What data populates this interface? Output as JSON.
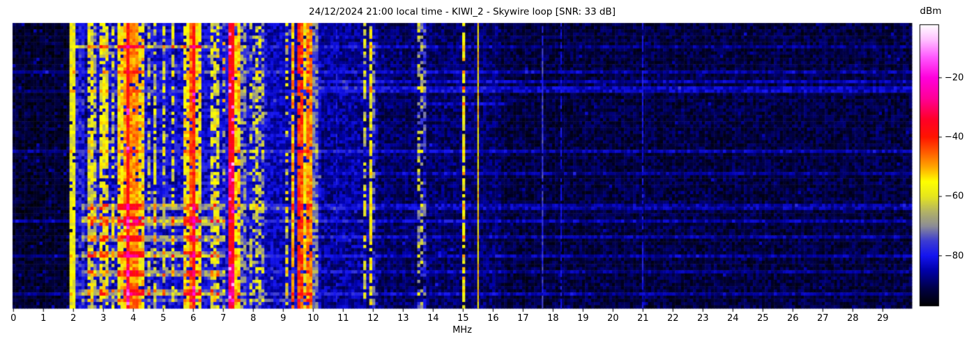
{
  "title": "24/12/2024 21:00 local time - KIWI_2 - Skywire loop [SNR: 33 dB]",
  "x_axis": {
    "label": "MHz",
    "ticks": [
      "0",
      "1",
      "2",
      "3",
      "4",
      "5",
      "6",
      "7",
      "8",
      "9",
      "10",
      "11",
      "12",
      "13",
      "14",
      "15",
      "16",
      "17",
      "18",
      "19",
      "20",
      "21",
      "22",
      "23",
      "24",
      "25",
      "26",
      "27",
      "28",
      "29"
    ]
  },
  "colorbar": {
    "label": "dBm",
    "ticks": [
      {
        "value": -20,
        "label": "−20"
      },
      {
        "value": -40,
        "label": "−40"
      },
      {
        "value": -60,
        "label": "−60"
      },
      {
        "value": -80,
        "label": "−80"
      }
    ]
  },
  "chart_data": {
    "type": "heatmap",
    "title": "24/12/2024 21:00 local time - KIWI_2 - Skywire loop [SNR: 33 dB]",
    "timestamp_label": "24/12/2024 21:00 local time",
    "station": "KIWI_2",
    "antenna": "Skywire loop",
    "snr_db": 33,
    "xlabel": "MHz",
    "x_range_mhz": [
      0,
      30
    ],
    "value_unit": "dBm",
    "value_range_dbm": [
      -97,
      -2
    ],
    "colorbar_ticks_dbm": [
      -20,
      -40,
      -60,
      -80
    ],
    "colormap_stops": [
      [
        -97,
        "#000000"
      ],
      [
        -91,
        "#000046"
      ],
      [
        -85,
        "#0000a8"
      ],
      [
        -80,
        "#1414f0"
      ],
      [
        -75,
        "#3c3cd2"
      ],
      [
        -70,
        "#8c8c96"
      ],
      [
        -65,
        "#b4b464"
      ],
      [
        -60,
        "#e6e61e"
      ],
      [
        -55,
        "#ffff00"
      ],
      [
        -50,
        "#ffa500"
      ],
      [
        -45,
        "#ff5a00"
      ],
      [
        -40,
        "#ff1400"
      ],
      [
        -34,
        "#ff0028"
      ],
      [
        -27,
        "#ff0096"
      ],
      [
        -20,
        "#ff00dc"
      ],
      [
        -13,
        "#ff5aff"
      ],
      [
        -7,
        "#ffc3ff"
      ],
      [
        -2,
        "#ffffff"
      ]
    ],
    "grid": {
      "cols": 300,
      "rows": 90
    },
    "seed": 7,
    "background_regions": [
      [
        0.0,
        1.9,
        -93.0,
        3.5,
        0.1,
        8
      ],
      [
        1.9,
        2.5,
        -86.0,
        5.0,
        0.05,
        6
      ],
      [
        2.5,
        8.5,
        -82.0,
        6.0,
        0.04,
        14
      ],
      [
        8.5,
        10.3,
        -84.0,
        5.0,
        0.03,
        10
      ],
      [
        10.3,
        12.2,
        -86.0,
        5.0,
        0.02,
        6
      ],
      [
        12.2,
        16.3,
        -89.0,
        4.5,
        0.02,
        6
      ],
      [
        16.3,
        30.01,
        -91.5,
        4.0,
        0.03,
        6
      ]
    ],
    "signal_bands": [
      [
        1.95,
        2.06,
        -58,
        5,
        0.95,
        0
      ],
      [
        2.1,
        2.45,
        -80,
        7,
        0.9,
        0
      ],
      [
        2.5,
        2.68,
        -59,
        7,
        0.8,
        0
      ],
      [
        2.7,
        2.82,
        -63,
        7,
        0.65,
        0
      ],
      [
        2.95,
        3.2,
        -58,
        7,
        0.75,
        0
      ],
      [
        3.28,
        3.42,
        -62,
        7,
        0.6,
        0
      ],
      [
        3.5,
        3.68,
        -55,
        6,
        0.85,
        0
      ],
      [
        3.68,
        3.82,
        -50,
        5,
        0.9,
        0
      ],
      [
        3.82,
        3.92,
        -38,
        4,
        1.0,
        0.05
      ],
      [
        3.95,
        4.2,
        -48,
        5,
        0.95,
        0
      ],
      [
        4.2,
        4.45,
        -55,
        7,
        0.8,
        0
      ],
      [
        4.5,
        4.62,
        -66,
        7,
        0.5,
        0
      ],
      [
        4.72,
        4.85,
        -62,
        7,
        0.55,
        0
      ],
      [
        5.0,
        5.12,
        -62,
        7,
        0.55,
        0
      ],
      [
        5.28,
        5.45,
        -60,
        7,
        0.6,
        0
      ],
      [
        5.72,
        5.86,
        -55,
        6,
        0.8,
        0
      ],
      [
        5.86,
        5.94,
        -40,
        4,
        1.0,
        0.04
      ],
      [
        5.94,
        6.04,
        -46,
        5,
        0.95,
        0
      ],
      [
        6.04,
        6.12,
        -40,
        4,
        1.0,
        0.04
      ],
      [
        6.12,
        6.3,
        -56,
        6,
        0.8,
        0
      ],
      [
        6.62,
        6.9,
        -59,
        7,
        0.65,
        0
      ],
      [
        7.02,
        7.15,
        -70,
        10,
        0.5,
        0.06
      ],
      [
        7.2,
        7.42,
        -37,
        4,
        1.0,
        0.1
      ],
      [
        7.44,
        7.56,
        -54,
        6,
        0.85,
        0
      ],
      [
        7.6,
        7.76,
        -70,
        7,
        0.6,
        0
      ],
      [
        7.94,
        8.06,
        -66,
        8,
        0.5,
        0
      ],
      [
        8.14,
        8.26,
        -62,
        8,
        0.55,
        0
      ],
      [
        8.3,
        8.42,
        -68,
        8,
        0.5,
        0
      ],
      [
        9.08,
        9.2,
        -60,
        10,
        0.5,
        0
      ],
      [
        9.28,
        9.44,
        -50,
        6,
        0.9,
        0
      ],
      [
        9.55,
        9.72,
        -43,
        5,
        0.95,
        0
      ],
      [
        9.74,
        9.84,
        -56,
        6,
        0.75,
        0
      ],
      [
        9.85,
        9.96,
        -48,
        5,
        0.9,
        0
      ],
      [
        10.0,
        10.16,
        -71,
        6,
        0.8,
        0
      ],
      [
        11.56,
        11.63,
        -73,
        5,
        0.75,
        0
      ],
      [
        11.75,
        11.84,
        -63,
        6,
        0.5,
        0
      ],
      [
        11.9,
        12.02,
        -58,
        6,
        0.8,
        0
      ],
      [
        12.04,
        12.14,
        -75,
        6,
        0.6,
        0
      ],
      [
        13.54,
        13.66,
        -68,
        9,
        0.6,
        0
      ],
      [
        13.72,
        13.82,
        -76,
        6,
        0.7,
        0
      ],
      [
        14.98,
        15.1,
        -56,
        7,
        0.8,
        0
      ]
    ],
    "thin_lines": [
      [
        10.81,
        -80,
        4,
        0.5
      ],
      [
        15.53,
        -53,
        4,
        1.0
      ],
      [
        17.68,
        -76,
        4,
        0.9
      ],
      [
        18.3,
        -81,
        4,
        0.6
      ],
      [
        21.02,
        -80,
        4,
        0.8
      ]
    ],
    "horizontal_streaks": [
      [
        7,
        7,
        2.1,
        6.6,
        16
      ],
      [
        7,
        7,
        6.6,
        30,
        5
      ],
      [
        15,
        15,
        0,
        30,
        6
      ],
      [
        18,
        18,
        10.2,
        30,
        7
      ],
      [
        20,
        21,
        10.2,
        30,
        8
      ],
      [
        21,
        21,
        0,
        10.2,
        5
      ],
      [
        25,
        25,
        13.5,
        16.5,
        6
      ],
      [
        40,
        40,
        0,
        30,
        7
      ],
      [
        47,
        47,
        10.5,
        30,
        5
      ],
      [
        57,
        58,
        2.3,
        7.1,
        14
      ],
      [
        57,
        58,
        7.1,
        30,
        6
      ],
      [
        61,
        63,
        2.3,
        7.1,
        13
      ],
      [
        62,
        62,
        0,
        30,
        7
      ],
      [
        67,
        68,
        2.3,
        7.1,
        12
      ],
      [
        67,
        67,
        10,
        30,
        6
      ],
      [
        72,
        73,
        2.3,
        7.1,
        13
      ],
      [
        73,
        73,
        0,
        30,
        6
      ],
      [
        78,
        79,
        2.3,
        7.1,
        12
      ],
      [
        78,
        78,
        8,
        30,
        5
      ],
      [
        84,
        85,
        2.3,
        7.1,
        12
      ],
      [
        85,
        85,
        0,
        30,
        6
      ],
      [
        87,
        87,
        2.3,
        10,
        8
      ],
      [
        76,
        89,
        3.82,
        3.92,
        7
      ],
      [
        44,
        54,
        7.2,
        7.42,
        6
      ],
      [
        76,
        88,
        7.2,
        7.42,
        7
      ]
    ]
  }
}
